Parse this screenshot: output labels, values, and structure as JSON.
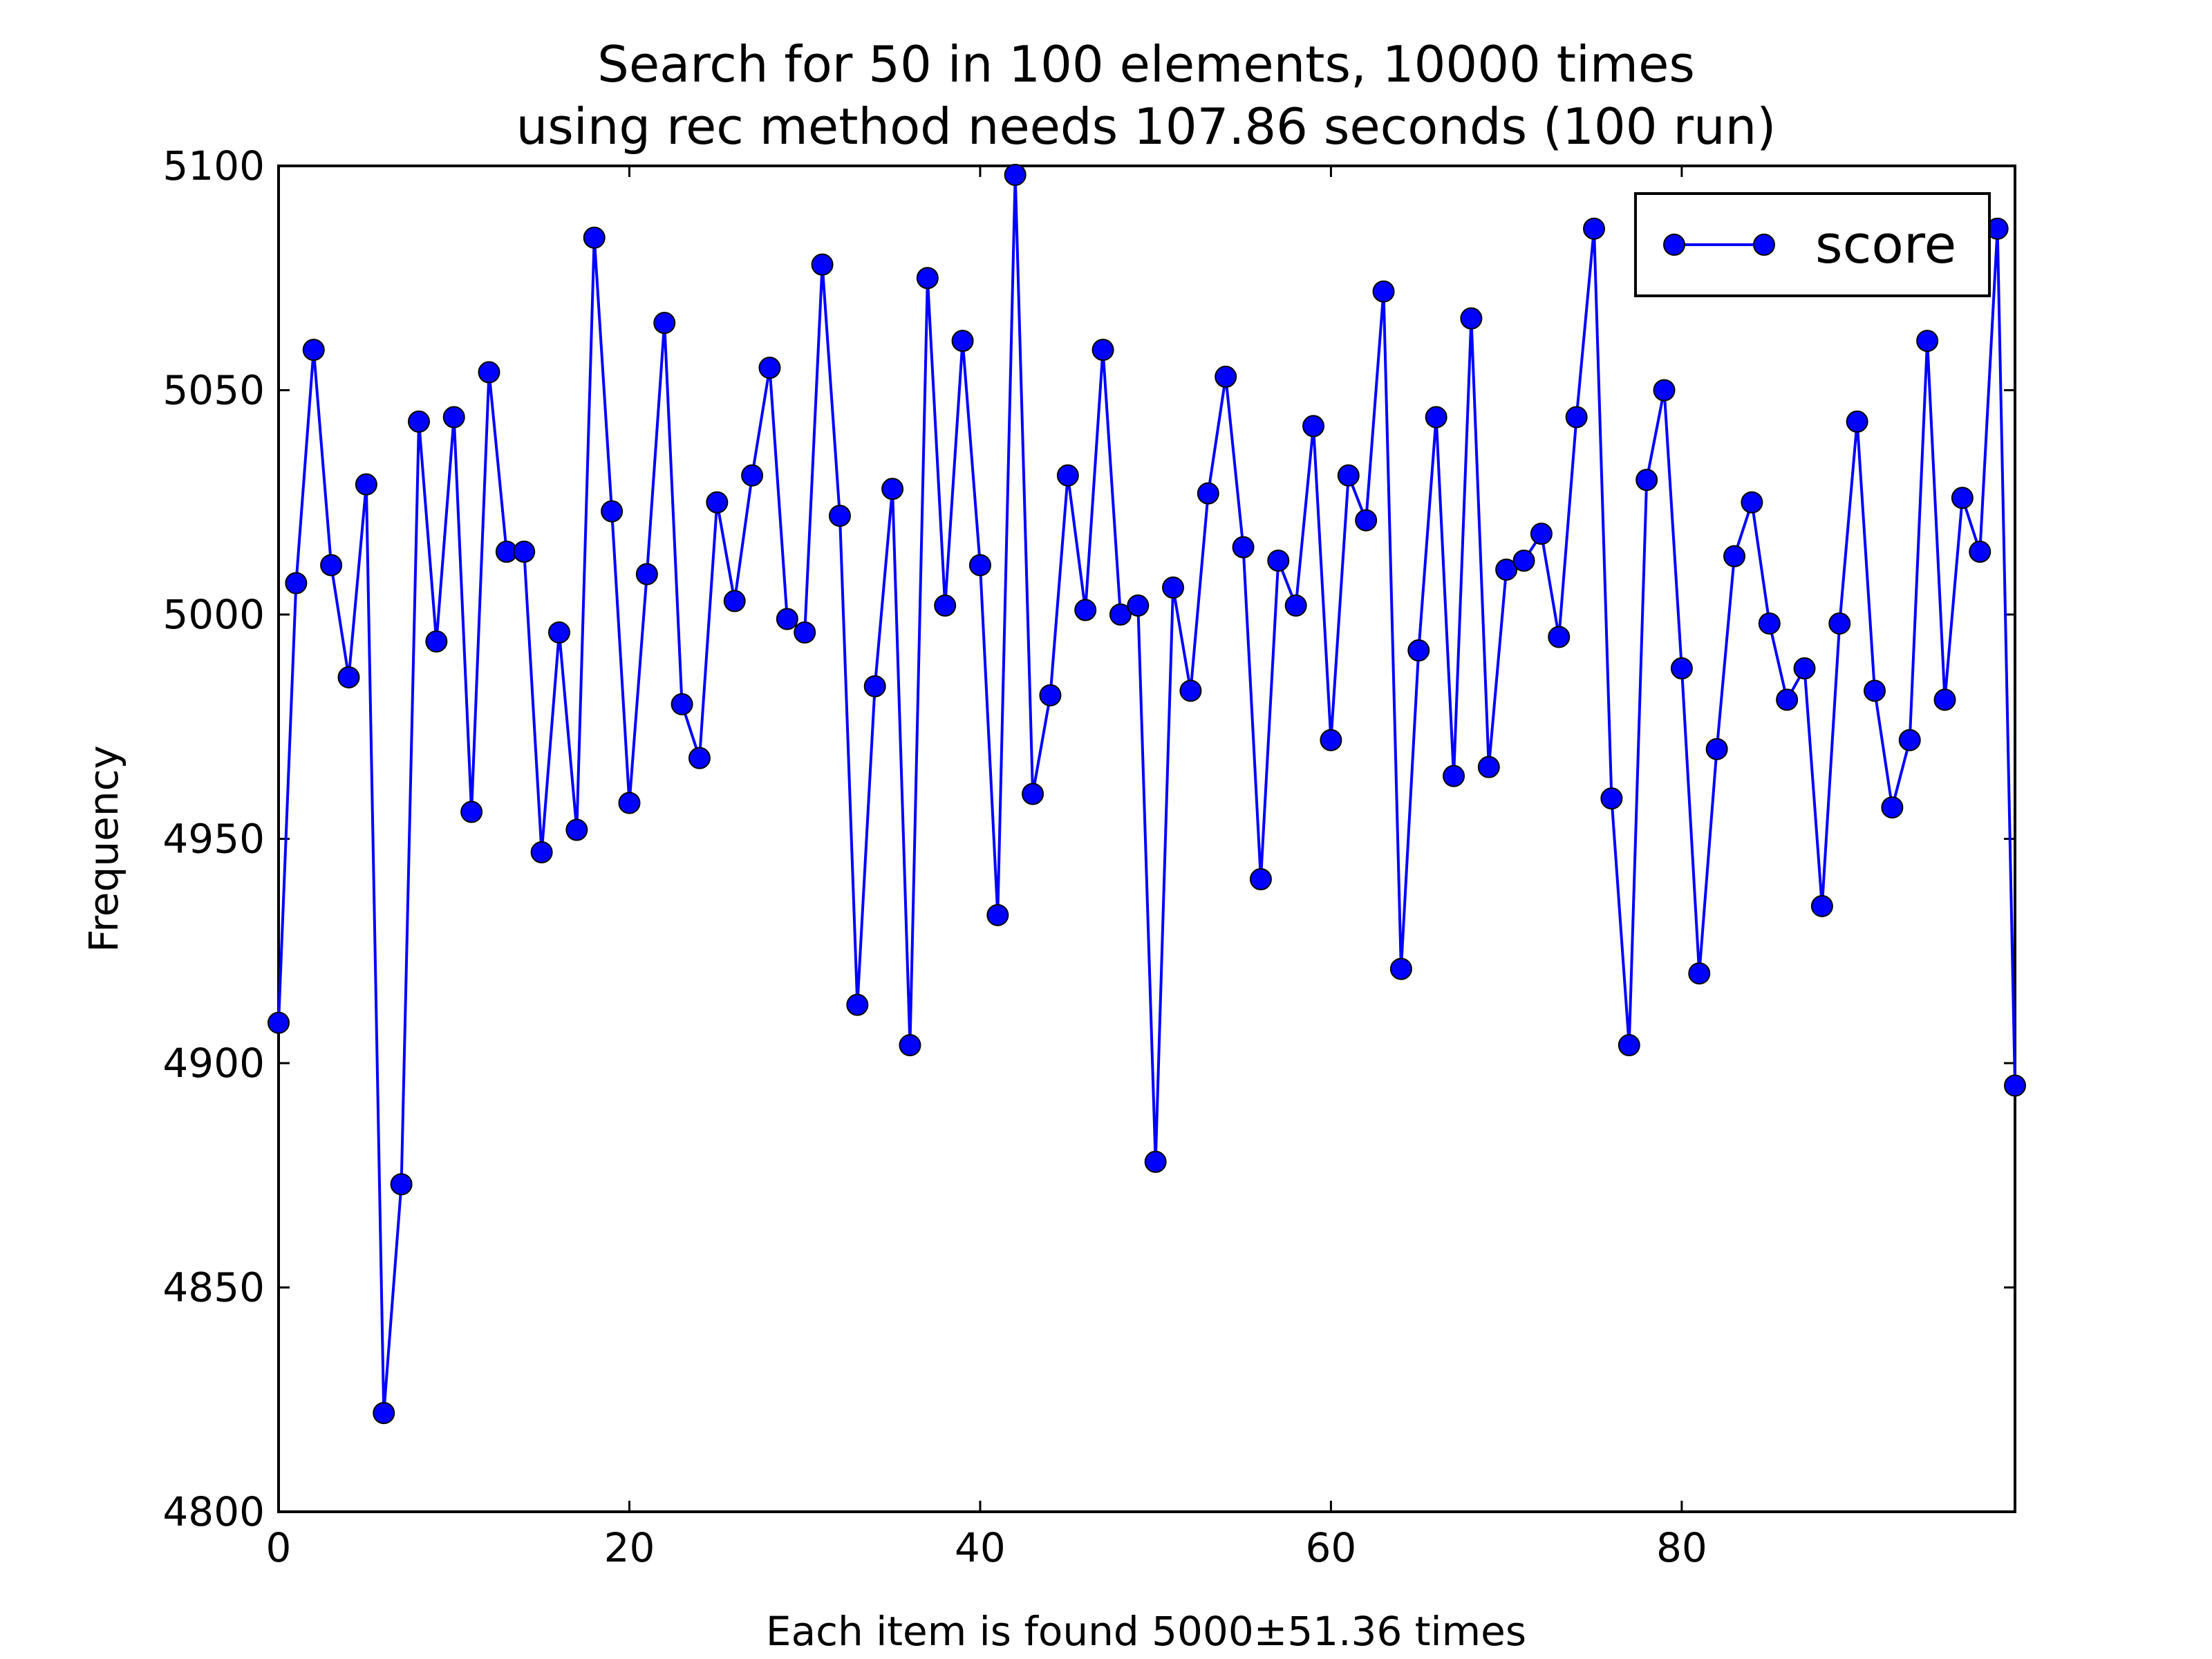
{
  "chart_data": {
    "type": "line",
    "title_lines": [
      "Search for 50 in 100 elements, 10000 times",
      "using rec method needs 107.86 seconds (100 run)"
    ],
    "xlabel": "Each item is found 5000±51.36 times",
    "ylabel": "Frequency",
    "xlim": [
      0,
      99
    ],
    "ylim": [
      4800,
      5100
    ],
    "x_ticks": [
      0,
      20,
      40,
      60,
      80
    ],
    "y_ticks": [
      4800,
      4850,
      4900,
      4950,
      5000,
      5050,
      5100
    ],
    "grid": false,
    "legend": "top-right",
    "series": [
      {
        "name": "score",
        "color": "#0000ff",
        "marker": "circle",
        "values": [
          4909,
          5007,
          5059,
          5011,
          4986,
          5029,
          4822,
          4873,
          5043,
          4994,
          5044,
          4956,
          5054,
          5014,
          5014,
          4947,
          4996,
          4952,
          5084,
          5023,
          4958,
          5009,
          5065,
          4980,
          4968,
          5025,
          5003,
          5031,
          5055,
          4999,
          4996,
          5078,
          5022,
          4913,
          4984,
          5028,
          4904,
          5075,
          5002,
          5061,
          5011,
          4933,
          5098,
          4960,
          4982,
          5031,
          5001,
          5059,
          5000,
          5002,
          4878,
          5006,
          4983,
          5027,
          5053,
          5015,
          4941,
          5012,
          5002,
          5042,
          4972,
          5031,
          5021,
          5072,
          4921,
          4992,
          5044,
          4964,
          5066,
          4966,
          5010,
          5012,
          5018,
          4995,
          5044,
          5086,
          4959,
          4904,
          5030,
          5050,
          4988,
          4920,
          4970,
          5013,
          5025,
          4998,
          4981,
          4988,
          4935,
          4998,
          5043,
          4983,
          4957,
          4972,
          5061,
          4981,
          5026,
          5014,
          5086,
          4895
        ]
      }
    ]
  }
}
